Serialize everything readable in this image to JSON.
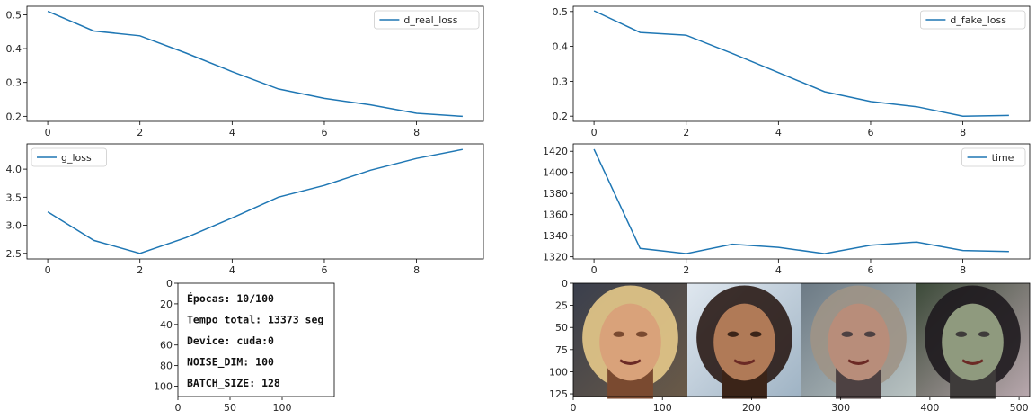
{
  "chart_data": [
    {
      "type": "line",
      "series": [
        {
          "name": "d_real_loss",
          "values": [
            0.51,
            0.452,
            0.438,
            0.387,
            0.332,
            0.281,
            0.253,
            0.234,
            0.209,
            0.2
          ]
        }
      ],
      "x": [
        0,
        1,
        2,
        3,
        4,
        5,
        6,
        7,
        8,
        9
      ],
      "xlim": [
        -0.45,
        9.45
      ],
      "ylim": [
        0.185,
        0.525
      ],
      "xticks": [
        0,
        2,
        4,
        6,
        8
      ],
      "xtick_labels": [
        "0",
        "2",
        "4",
        "6",
        "8"
      ],
      "yticks": [
        0.2,
        0.3,
        0.4,
        0.5
      ],
      "ytick_labels": [
        "0.2",
        "0.3",
        "0.4",
        "0.5"
      ],
      "legend": "top-right",
      "color": "#1f77b4"
    },
    {
      "type": "line",
      "series": [
        {
          "name": "d_fake_loss",
          "values": [
            0.502,
            0.44,
            0.432,
            0.38,
            0.325,
            0.27,
            0.242,
            0.227,
            0.2,
            0.202
          ]
        }
      ],
      "x": [
        0,
        1,
        2,
        3,
        4,
        5,
        6,
        7,
        8,
        9
      ],
      "xlim": [
        -0.45,
        9.45
      ],
      "ylim": [
        0.185,
        0.515
      ],
      "xticks": [
        0,
        2,
        4,
        6,
        8
      ],
      "xtick_labels": [
        "0",
        "2",
        "4",
        "6",
        "8"
      ],
      "yticks": [
        0.2,
        0.3,
        0.4,
        0.5
      ],
      "ytick_labels": [
        "0.2",
        "0.3",
        "0.4",
        "0.5"
      ],
      "legend": "top-right",
      "color": "#1f77b4"
    },
    {
      "type": "line",
      "series": [
        {
          "name": "g_loss",
          "values": [
            3.24,
            2.73,
            2.5,
            2.78,
            3.13,
            3.5,
            3.71,
            3.98,
            4.19,
            4.35
          ]
        }
      ],
      "x": [
        0,
        1,
        2,
        3,
        4,
        5,
        6,
        7,
        8,
        9
      ],
      "xlim": [
        -0.45,
        9.45
      ],
      "ylim": [
        2.4,
        4.45
      ],
      "xticks": [
        0,
        2,
        4,
        6,
        8
      ],
      "xtick_labels": [
        "0",
        "2",
        "4",
        "6",
        "8"
      ],
      "yticks": [
        2.5,
        3.0,
        3.5,
        4.0
      ],
      "ytick_labels": [
        "2.5",
        "3.0",
        "3.5",
        "4.0"
      ],
      "legend": "top-left",
      "color": "#1f77b4"
    },
    {
      "type": "line",
      "series": [
        {
          "name": "time",
          "values": [
            1422,
            1328,
            1323,
            1332,
            1329,
            1323,
            1331,
            1334,
            1326,
            1325
          ]
        }
      ],
      "x": [
        0,
        1,
        2,
        3,
        4,
        5,
        6,
        7,
        8,
        9
      ],
      "xlim": [
        -0.45,
        9.45
      ],
      "ylim": [
        1318,
        1427
      ],
      "xticks": [
        0,
        2,
        4,
        6,
        8
      ],
      "xtick_labels": [
        "0",
        "2",
        "4",
        "6",
        "8"
      ],
      "yticks": [
        1320,
        1340,
        1360,
        1380,
        1400,
        1420
      ],
      "ytick_labels": [
        "1320",
        "1340",
        "1360",
        "1380",
        "1400",
        "1420"
      ],
      "legend": "top-right",
      "color": "#1f77b4"
    },
    {
      "type": "table",
      "lines": [
        "Épocas: 10/100",
        "Tempo total: 13373 seg",
        "Device: cuda:0",
        "NOISE_DIM: 100",
        "BATCH_SIZE: 128"
      ],
      "xlim": [
        0,
        150
      ],
      "ylim": [
        110,
        0
      ],
      "xticks": [
        0,
        50,
        100
      ],
      "xtick_labels": [
        "0",
        "50",
        "100"
      ],
      "yticks": [
        0,
        20,
        40,
        60,
        80,
        100
      ],
      "ytick_labels": [
        "0",
        "20",
        "40",
        "60",
        "80",
        "100"
      ]
    },
    {
      "type": "image",
      "image_count": 4,
      "xlim": [
        0,
        512
      ],
      "ylim": [
        128,
        0
      ],
      "xticks": [
        0,
        100,
        200,
        300,
        400,
        500
      ],
      "xtick_labels": [
        "0",
        "100",
        "200",
        "300",
        "400",
        "500"
      ],
      "yticks": [
        0,
        25,
        50,
        75,
        100,
        125
      ],
      "ytick_labels": [
        "0",
        "25",
        "50",
        "75",
        "100",
        "125"
      ],
      "image_palettes": [
        {
          "bg1": "#3a3f4c",
          "bg2": "#6a5a48",
          "hair": "#e6c98a",
          "skin": "#d9a27a",
          "shade": "#7a4a30"
        },
        {
          "bg1": "#dfe7ef",
          "bg2": "#9fb3c4",
          "hair": "#2a1b16",
          "skin": "#b07a57",
          "shade": "#3b2418"
        },
        {
          "bg1": "#6c7a85",
          "bg2": "#b9c3c2",
          "hair": "#9e9486",
          "skin": "#b88d7a",
          "shade": "#4d4142"
        },
        {
          "bg1": "#3c4a39",
          "bg2": "#b8a7ad",
          "hair": "#1e1a1e",
          "skin": "#8f9a7e",
          "shade": "#3e3b3a"
        }
      ]
    }
  ]
}
